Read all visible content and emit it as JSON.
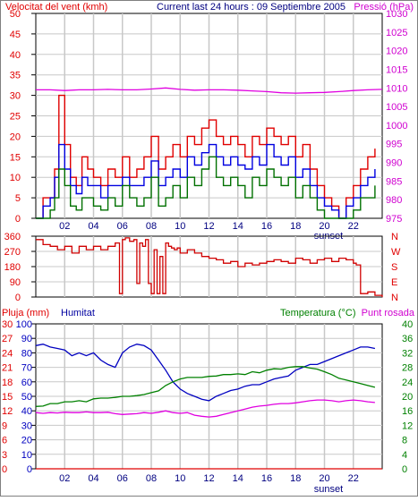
{
  "header": {
    "left_title": "Velocitat del vent (kmh)",
    "center_title": "Current last 24 hours : 09 Septiembre 2005",
    "right_title": "Pressió (hPa)"
  },
  "colors": {
    "gust": "#e00000",
    "wind": "#0000e0",
    "wind_min": "#007000",
    "pressure": "#e000e0",
    "direction": "#d00000",
    "humidity": "#0000c0",
    "temperature": "#008000",
    "dewpoint": "#e000e0",
    "rain": "#e00000",
    "grid": "#c8c8c8",
    "axis_text_red": "#e00000",
    "axis_text_magenta": "#d000d0"
  },
  "chart_data": [
    {
      "type": "line",
      "x_ticks": [
        "02",
        "04",
        "06",
        "08",
        "10",
        "12",
        "14",
        "16",
        "18",
        "20",
        "22"
      ],
      "marker_label": "sunset",
      "xlim": [
        0,
        24
      ],
      "ylabel_left": "Velocitat del vent (kmh)",
      "ylabel_right": "Pressió (hPa)",
      "ylim_left": [
        0,
        50
      ],
      "ylim_right": [
        975,
        1030
      ],
      "y_ticks_left": [
        "0",
        "5",
        "10",
        "15",
        "20",
        "25",
        "30",
        "35",
        "40",
        "45",
        "50"
      ],
      "y_ticks_right": [
        "975",
        "980",
        "985",
        "990",
        "995",
        "1000",
        "1005",
        "1010",
        "1015",
        "1020",
        "1025",
        "1030"
      ],
      "series": [
        {
          "key": "gust",
          "axis": "left",
          "x": [
            0,
            0.5,
            1,
            1.3,
            1.6,
            2,
            2.4,
            2.8,
            3.2,
            3.6,
            4,
            4.5,
            5,
            5.5,
            6,
            6.5,
            7,
            7.5,
            8,
            8.5,
            9,
            9.5,
            10,
            10.5,
            11,
            11.5,
            12,
            12.5,
            13,
            13.5,
            14,
            14.5,
            15,
            15.5,
            16,
            16.5,
            17,
            17.5,
            18,
            18.5,
            19,
            19.5,
            20,
            20.5,
            21,
            21.5,
            22,
            22.5,
            23,
            23.5
          ],
          "values": [
            0,
            5,
            5,
            12,
            30,
            18,
            10,
            8,
            15,
            12,
            10,
            8,
            12,
            10,
            15,
            10,
            12,
            15,
            20,
            12,
            15,
            18,
            15,
            20,
            18,
            22,
            24,
            20,
            18,
            20,
            18,
            15,
            20,
            18,
            22,
            20,
            18,
            20,
            15,
            18,
            12,
            8,
            5,
            3,
            0,
            5,
            8,
            12,
            15,
            17
          ]
        },
        {
          "key": "wind",
          "axis": "left",
          "x": [
            0,
            0.5,
            1,
            1.3,
            1.6,
            2,
            2.4,
            2.8,
            3.2,
            3.6,
            4,
            4.5,
            5,
            5.5,
            6,
            6.5,
            7,
            7.5,
            8,
            8.5,
            9,
            9.5,
            10,
            10.5,
            11,
            11.5,
            12,
            12.5,
            13,
            13.5,
            14,
            14.5,
            15,
            15.5,
            16,
            16.5,
            17,
            17.5,
            18,
            18.5,
            19,
            19.5,
            20,
            20.5,
            21,
            21.5,
            22,
            22.5,
            23,
            23.5
          ],
          "values": [
            0,
            3,
            5,
            10,
            18,
            12,
            8,
            6,
            10,
            8,
            8,
            5,
            8,
            8,
            10,
            8,
            8,
            10,
            14,
            8,
            10,
            12,
            10,
            15,
            13,
            16,
            18,
            15,
            13,
            15,
            13,
            12,
            15,
            13,
            18,
            15,
            13,
            15,
            10,
            12,
            8,
            5,
            3,
            2,
            0,
            3,
            5,
            8,
            10,
            12
          ]
        },
        {
          "key": "wind_min",
          "axis": "left",
          "x": [
            0,
            0.5,
            1,
            1.3,
            1.6,
            2,
            2.4,
            2.8,
            3.2,
            3.6,
            4,
            4.5,
            5,
            5.5,
            6,
            6.5,
            7,
            7.5,
            8,
            8.5,
            9,
            9.5,
            10,
            10.5,
            11,
            11.5,
            12,
            12.5,
            13,
            13.5,
            14,
            14.5,
            15,
            15.5,
            16,
            16.5,
            17,
            17.5,
            18,
            18.5,
            19,
            19.5,
            20,
            20.5,
            21,
            21.5,
            22,
            22.5,
            23,
            23.5
          ],
          "values": [
            0,
            0,
            2,
            5,
            12,
            8,
            3,
            2,
            5,
            5,
            3,
            2,
            5,
            3,
            8,
            5,
            3,
            5,
            10,
            3,
            5,
            8,
            5,
            10,
            8,
            12,
            15,
            10,
            8,
            10,
            8,
            5,
            10,
            8,
            12,
            10,
            8,
            10,
            5,
            8,
            5,
            2,
            0,
            0,
            0,
            0,
            2,
            5,
            5,
            8
          ]
        },
        {
          "key": "pressure",
          "axis": "right",
          "x": [
            0,
            1,
            2,
            3,
            4,
            5,
            6,
            7,
            8,
            9,
            10,
            11,
            12,
            13,
            14,
            15,
            16,
            17,
            18,
            19,
            20,
            21,
            22,
            23,
            24
          ],
          "values": [
            1009.5,
            1009.5,
            1009.3,
            1009.5,
            1009.5,
            1009.6,
            1009.5,
            1009.5,
            1009.7,
            1010,
            1009.6,
            1009.4,
            1009.5,
            1009.5,
            1009.4,
            1009.2,
            1009,
            1008.7,
            1008.6,
            1008.7,
            1008.8,
            1009,
            1009.3,
            1009.5,
            1009.6
          ]
        }
      ]
    },
    {
      "type": "line",
      "x_ticks": [],
      "xlim": [
        0,
        24
      ],
      "ylim": [
        0,
        360
      ],
      "y_ticks_left": [
        "0",
        "90",
        "180",
        "270",
        "360"
      ],
      "y_ticks_right": [
        "N",
        "E",
        "S",
        "W",
        "N"
      ],
      "series": [
        {
          "key": "direction",
          "x": [
            0,
            0.5,
            1,
            1.5,
            2,
            2.5,
            3,
            3.5,
            4,
            4.5,
            5,
            5.5,
            5.8,
            6,
            6.2,
            6.5,
            6.8,
            7,
            7.2,
            7.4,
            7.6,
            7.8,
            8,
            8.2,
            8.4,
            8.6,
            8.8,
            9,
            9.2,
            9.4,
            9.6,
            9.8,
            10,
            10.5,
            11,
            11.5,
            12,
            12.5,
            13,
            13.5,
            14,
            14.5,
            15,
            15.5,
            16,
            16.5,
            17,
            17.5,
            18,
            18.5,
            19,
            19.5,
            20,
            20.5,
            21,
            21.5,
            22,
            22.2,
            22.5,
            23,
            23.5,
            24
          ],
          "values": [
            340,
            310,
            300,
            280,
            300,
            260,
            300,
            280,
            300,
            280,
            300,
            320,
            20,
            340,
            350,
            330,
            340,
            80,
            320,
            300,
            340,
            80,
            20,
            280,
            20,
            240,
            20,
            320,
            300,
            290,
            280,
            290,
            260,
            280,
            260,
            240,
            230,
            220,
            200,
            210,
            180,
            200,
            190,
            200,
            210,
            220,
            210,
            200,
            230,
            220,
            200,
            220,
            230,
            210,
            230,
            220,
            200,
            190,
            20,
            30,
            10,
            0
          ]
        }
      ]
    },
    {
      "type": "line",
      "x_ticks": [
        "02",
        "04",
        "06",
        "08",
        "10",
        "12",
        "14",
        "16",
        "18",
        "20",
        "22"
      ],
      "marker_label": "sunset",
      "xlim": [
        0,
        24
      ],
      "ylabel_left": "Pluja (mm)",
      "ylabel_humidity": "Humitat",
      "ylabel_right": "Temperatura (°C)",
      "ylabel_dew": "Punt rosada",
      "y_ticks_rain": [
        "0",
        "3",
        "6",
        "9",
        "12",
        "15",
        "18",
        "21",
        "24",
        "27",
        "30"
      ],
      "y_ticks_humidity": [
        "0",
        "10",
        "20",
        "30",
        "40",
        "50",
        "60",
        "70",
        "80",
        "90",
        "100"
      ],
      "y_ticks_temp": [
        "0",
        "4",
        "8",
        "12",
        "16",
        "20",
        "24",
        "28",
        "32",
        "36",
        "40"
      ],
      "ylim": [
        0,
        40
      ],
      "series": [
        {
          "key": "humidity",
          "axis": "humidity",
          "x": [
            0,
            0.5,
            1,
            1.5,
            2,
            2.5,
            3,
            3.5,
            4,
            4.5,
            5,
            5.5,
            6,
            6.5,
            7,
            7.5,
            8,
            8.5,
            9,
            9.5,
            10,
            10.5,
            11,
            11.5,
            12,
            12.5,
            13,
            13.5,
            14,
            14.5,
            15,
            15.5,
            16,
            16.5,
            17,
            17.5,
            18,
            18.5,
            19,
            19.5,
            20,
            20.5,
            21,
            21.5,
            22,
            22.5,
            23,
            23.5
          ],
          "values": [
            85,
            86,
            84,
            83,
            82,
            78,
            80,
            78,
            80,
            75,
            72,
            70,
            80,
            84,
            86,
            85,
            82,
            75,
            68,
            60,
            55,
            52,
            50,
            48,
            47,
            50,
            52,
            54,
            55,
            57,
            58,
            58,
            60,
            62,
            63,
            64,
            68,
            70,
            72,
            72,
            74,
            76,
            78,
            80,
            82,
            84,
            84,
            83
          ]
        },
        {
          "key": "temperature",
          "axis": "temp",
          "x": [
            0,
            0.5,
            1,
            1.5,
            2,
            2.5,
            3,
            3.5,
            4,
            4.5,
            5,
            5.5,
            6,
            6.5,
            7,
            7.5,
            8,
            8.5,
            9,
            9.5,
            10,
            10.5,
            11,
            11.5,
            12,
            12.5,
            13,
            13.5,
            14,
            14.5,
            15,
            15.5,
            16,
            16.5,
            17,
            17.5,
            18,
            18.5,
            19,
            19.5,
            20,
            20.5,
            21,
            21.5,
            22,
            22.5,
            23,
            23.5
          ],
          "values": [
            17.2,
            17.3,
            18,
            18,
            18.5,
            18.5,
            18.8,
            18.5,
            19.3,
            19.5,
            19.5,
            19.7,
            20,
            20,
            20.2,
            20.5,
            21,
            21.5,
            23,
            24,
            24.8,
            25.2,
            25.2,
            25.2,
            25.5,
            25.6,
            26,
            26,
            26.2,
            26,
            26.8,
            26.5,
            27.2,
            27.6,
            27.5,
            28,
            28.2,
            28.2,
            27.8,
            27.5,
            26.8,
            26,
            25,
            24.5,
            24,
            23.5,
            23,
            22.5
          ]
        },
        {
          "key": "dewpoint",
          "axis": "temp",
          "x": [
            0,
            0.5,
            1,
            1.5,
            2,
            2.5,
            3,
            3.5,
            4,
            4.5,
            5,
            5.5,
            6,
            6.5,
            7,
            7.5,
            8,
            8.5,
            9,
            9.5,
            10,
            10.5,
            11,
            11.5,
            12,
            12.5,
            13,
            13.5,
            14,
            14.5,
            15,
            15.5,
            16,
            16.5,
            17,
            17.5,
            18,
            18.5,
            19,
            19.5,
            20,
            20.5,
            21,
            21.5,
            22,
            22.5,
            23,
            23.5
          ],
          "values": [
            15.5,
            15.3,
            15.5,
            15.4,
            15.6,
            15.5,
            15.5,
            15.7,
            15.5,
            15.5,
            15.6,
            15.2,
            15,
            15.1,
            15.2,
            15.5,
            15.3,
            15.6,
            16,
            15.5,
            15.3,
            15.5,
            14.8,
            14.5,
            14.3,
            14.5,
            15,
            15.5,
            16,
            16.5,
            17,
            17.3,
            17.5,
            17.8,
            18,
            18,
            18.2,
            18.5,
            18.8,
            19,
            19,
            18.8,
            18.5,
            18.8,
            19,
            18.8,
            18.5,
            18.3
          ]
        },
        {
          "key": "rain",
          "axis": "rain",
          "x": [
            0,
            24
          ],
          "values": [
            0,
            0
          ]
        }
      ]
    }
  ]
}
